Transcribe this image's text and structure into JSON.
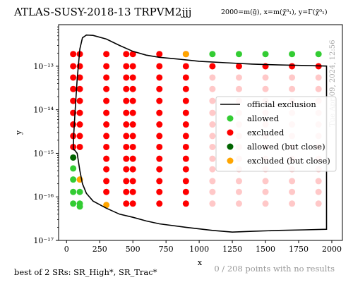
{
  "header": {
    "title": "ATLAS-SUSY-2018-13  TRPVM2jjj",
    "subtitle": "2000=m(g̃), x=m(χ̃⁰₁), y=Γ(χ̃⁰₁)"
  },
  "footer": {
    "left": "best of 2 SRs: SR_High*, SR_Trac*",
    "right": "0 / 208 points with no results"
  },
  "watermark": "Tue Apr 09, 2024, 12:56",
  "colors": {
    "allowed": "#33cc33",
    "excluded": "#ff0000",
    "allowed_close": "#006400",
    "excluded_close": "#ffa500",
    "excluded_light": "#ffc8c8",
    "line": "#000000"
  },
  "chart_data": {
    "type": "scatter",
    "xlabel": "x",
    "ylabel": "y",
    "xlim": [
      -60,
      2080
    ],
    "ylim": [
      1e-17,
      9e-13
    ],
    "yscale": "log",
    "x_ticks": [
      0,
      250,
      500,
      750,
      1000,
      1250,
      1500,
      1750,
      2000
    ],
    "y_ticks": [
      {
        "value": 1e-17,
        "label": "10⁻¹⁷"
      },
      {
        "value": 1e-16,
        "label": "10⁻¹⁶"
      },
      {
        "value": 1e-15,
        "label": "10⁻¹⁵"
      },
      {
        "value": 1e-14,
        "label": "10⁻¹⁴"
      },
      {
        "value": 1e-13,
        "label": "10⁻¹³"
      }
    ],
    "legend_position": "right",
    "legend": [
      {
        "label": "official exclusion",
        "kind": "line",
        "color": "#000000"
      },
      {
        "label": "allowed",
        "kind": "point",
        "color": "#33cc33"
      },
      {
        "label": "excluded",
        "kind": "point",
        "color": "#ff0000"
      },
      {
        "label": "allowed (but close)",
        "kind": "point",
        "color": "#006400"
      },
      {
        "label": "excluded (but close)",
        "kind": "point",
        "color": "#ffa500"
      }
    ],
    "exclusion_curve": [
      [
        50,
        1.2e-15
      ],
      [
        55,
        3e-15
      ],
      [
        65,
        1e-14
      ],
      [
        80,
        5e-14
      ],
      [
        100,
        2.5e-13
      ],
      [
        120,
        4.5e-13
      ],
      [
        150,
        5.2e-13
      ],
      [
        200,
        5.1e-13
      ],
      [
        300,
        4.2e-13
      ],
      [
        400,
        3e-13
      ],
      [
        500,
        2.2e-13
      ],
      [
        600,
        1.8e-13
      ],
      [
        700,
        1.6e-13
      ],
      [
        800,
        1.5e-13
      ],
      [
        900,
        1.4e-13
      ],
      [
        1000,
        1.3e-13
      ],
      [
        1200,
        1.2e-13
      ],
      [
        1400,
        1.12e-13
      ],
      [
        1600,
        1.07e-13
      ],
      [
        1800,
        1.04e-13
      ],
      [
        1960,
        1.01e-13
      ],
      [
        1960,
        1.8e-17
      ],
      [
        1800,
        1.75e-17
      ],
      [
        1600,
        1.7e-17
      ],
      [
        1400,
        1.62e-17
      ],
      [
        1250,
        1.55e-17
      ],
      [
        1100,
        1.7e-17
      ],
      [
        900,
        2e-17
      ],
      [
        700,
        2.4e-17
      ],
      [
        600,
        2.8e-17
      ],
      [
        500,
        3.4e-17
      ],
      [
        400,
        4e-17
      ],
      [
        300,
        5.5e-17
      ],
      [
        200,
        8e-17
      ],
      [
        150,
        1.2e-16
      ],
      [
        120,
        2e-16
      ],
      [
        100,
        4e-16
      ],
      [
        80,
        1e-15
      ],
      [
        60,
        1.2e-15
      ],
      [
        50,
        1.2e-15
      ]
    ],
    "points": [
      {
        "x": 50,
        "y": 8e-16,
        "status": "allowed_close"
      },
      {
        "x": 50,
        "y": 4.5e-16,
        "status": "allowed"
      },
      {
        "x": 50,
        "y": 2.5e-16,
        "status": "allowed"
      },
      {
        "x": 50,
        "y": 1.3e-16,
        "status": "allowed"
      },
      {
        "x": 50,
        "y": 7e-17,
        "status": "allowed"
      },
      {
        "x": 100,
        "y": 2.5e-16,
        "status": "excluded_close"
      },
      {
        "x": 100,
        "y": 1.3e-16,
        "status": "allowed"
      },
      {
        "x": 100,
        "y": 7e-17,
        "status": "allowed"
      },
      {
        "x": 100,
        "y": 6e-17,
        "status": "allowed"
      },
      {
        "x": 300,
        "y": 6.5e-17,
        "status": "excluded_close"
      },
      {
        "x": 900,
        "y": 1.9e-13,
        "status": "excluded_close"
      },
      {
        "x": 1100,
        "y": 1.9e-13,
        "status": "allowed"
      },
      {
        "x": 1300,
        "y": 1.9e-13,
        "status": "allowed"
      },
      {
        "x": 1500,
        "y": 1.9e-13,
        "status": "allowed"
      },
      {
        "x": 1700,
        "y": 1.9e-13,
        "status": "allowed"
      },
      {
        "x": 1900,
        "y": 1.9e-13,
        "status": "allowed"
      }
    ],
    "grid": {
      "excluded_x": [
        50,
        100,
        300,
        450,
        500,
        700,
        900
      ],
      "excluded_light_x": [
        1100,
        1300,
        1500,
        1700,
        1900
      ],
      "y": [
        1.9e-13,
        1e-13,
        5.5e-14,
        3e-14,
        1.6e-14,
        8.5e-15,
        4.6e-15,
        2.5e-15,
        1.4e-15,
        7.5e-16,
        4.3e-16,
        2.3e-16,
        1.3e-16,
        7e-17
      ]
    },
    "x_columns_dense": [
      300,
      450,
      500,
      700,
      900,
      1100,
      1300,
      1500,
      1700,
      1900
    ]
  }
}
